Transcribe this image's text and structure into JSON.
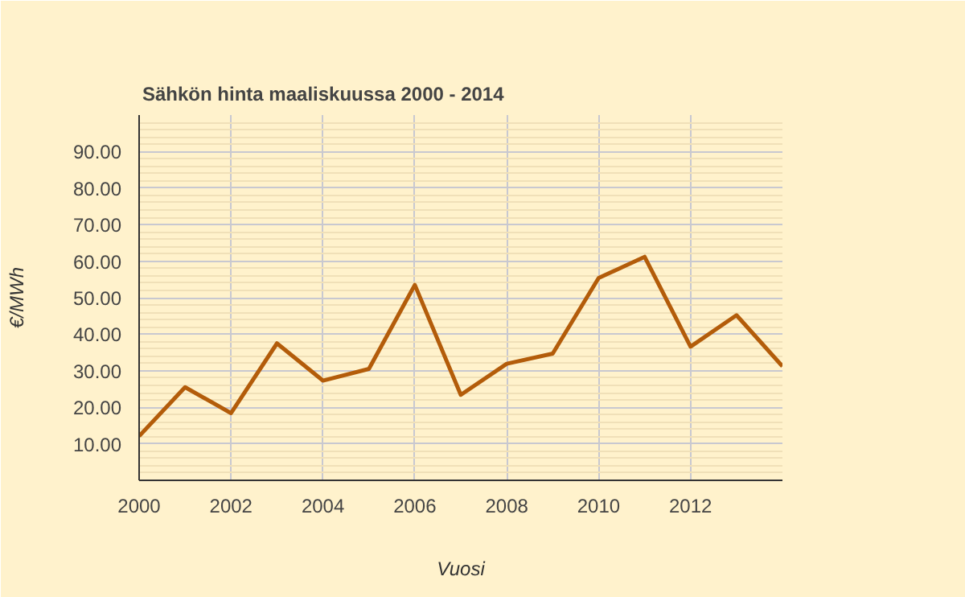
{
  "chart_data": {
    "type": "line",
    "title": "Sähkön hinta maaliskuussa 2000 - 2014",
    "xlabel": "Vuosi",
    "ylabel": "€/MWh",
    "x": [
      2000,
      2001,
      2002,
      2003,
      2004,
      2005,
      2006,
      2007,
      2008,
      2009,
      2010,
      2011,
      2012,
      2013,
      2014
    ],
    "series": [
      {
        "color": "#b35c0a",
        "values": [
          12.1,
          25.5,
          18.4,
          37.5,
          27.3,
          30.5,
          53.5,
          23.4,
          31.9,
          34.7,
          55.4,
          61.2,
          36.6,
          45.2,
          31.2
        ]
      }
    ],
    "xlim": [
      2000,
      2014
    ],
    "xticks": [
      2000,
      2002,
      2004,
      2006,
      2008,
      2010,
      2012
    ],
    "ylim": [
      0,
      100
    ],
    "yticks": [
      {
        "value": 10,
        "label": "10.00"
      },
      {
        "value": 20,
        "label": "20.00"
      },
      {
        "value": 30,
        "label": "30.00"
      },
      {
        "value": 40,
        "label": "40.00"
      },
      {
        "value": 50,
        "label": "50.00"
      },
      {
        "value": 60,
        "label": "60.00"
      },
      {
        "value": 70,
        "label": "70.00"
      },
      {
        "value": 80,
        "label": "80.00"
      },
      {
        "value": 90,
        "label": "90.00"
      }
    ],
    "grid": true
  }
}
